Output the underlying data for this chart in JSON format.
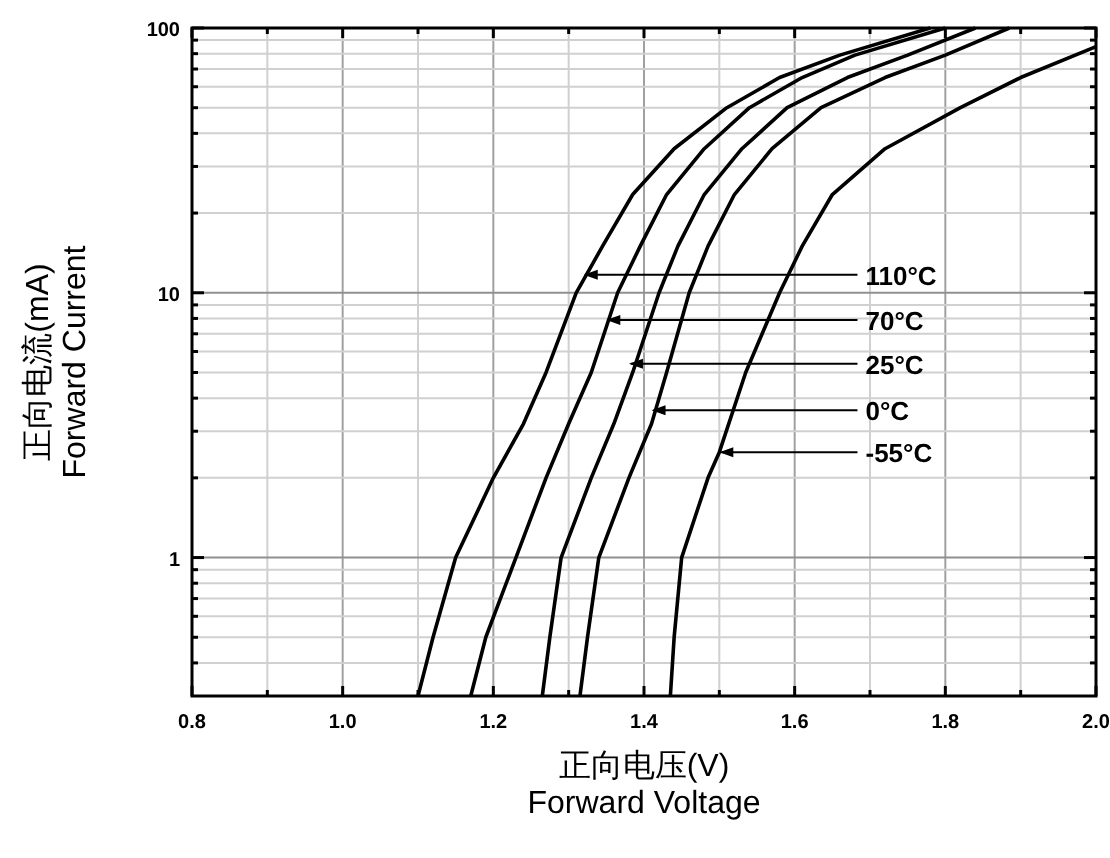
{
  "chart_data": {
    "type": "line",
    "xlabel": "正向电压(V)\nForward Voltage",
    "ylabel": "正向电流(mA)\nForward Current",
    "xlim": [
      0.8,
      2.0
    ],
    "xticks": [
      {
        "value": 0.8,
        "label": "0.8"
      },
      {
        "value": 0.9,
        "label": null
      },
      {
        "value": 1.0,
        "label": "1.0"
      },
      {
        "value": 1.1,
        "label": null
      },
      {
        "value": 1.2,
        "label": "1.2"
      },
      {
        "value": 1.3,
        "label": null
      },
      {
        "value": 1.4,
        "label": "1.4"
      },
      {
        "value": 1.5,
        "label": null
      },
      {
        "value": 1.6,
        "label": "1.6"
      },
      {
        "value": 1.7,
        "label": null
      },
      {
        "value": 1.8,
        "label": "1.8"
      },
      {
        "value": 1.9,
        "label": null
      },
      {
        "value": 2.0,
        "label": "2.0"
      }
    ],
    "ylim": [
      0.3,
      100
    ],
    "log": "y",
    "yticks": [
      {
        "value": 0.4,
        "label": null
      },
      {
        "value": 0.5,
        "label": null
      },
      {
        "value": 0.6,
        "label": null
      },
      {
        "value": 0.7,
        "label": null
      },
      {
        "value": 0.8,
        "label": null
      },
      {
        "value": 0.9,
        "label": null
      },
      1,
      {
        "value": 2,
        "label": null
      },
      {
        "value": 3,
        "label": null
      },
      {
        "value": 4,
        "label": null
      },
      {
        "value": 5,
        "label": null
      },
      {
        "value": 6,
        "label": null
      },
      {
        "value": 7,
        "label": null
      },
      {
        "value": 8,
        "label": null
      },
      {
        "value": 9,
        "label": null
      },
      10,
      {
        "value": 20,
        "label": null
      },
      {
        "value": 30,
        "label": null
      },
      {
        "value": 40,
        "label": null
      },
      {
        "value": 50,
        "label": null
      },
      {
        "value": 60,
        "label": null
      },
      {
        "value": 70,
        "label": null
      },
      {
        "value": 80,
        "label": null
      },
      {
        "value": 90,
        "label": null
      },
      100
    ],
    "grid": true,
    "marker": "none",
    "line_style": "solid",
    "series": [
      {
        "color": "#000000",
        "x": [
          1.1,
          1.12,
          1.15,
          1.2,
          1.24,
          1.27,
          1.31,
          1.345,
          1.385,
          1.44,
          1.51,
          1.58,
          1.66,
          1.78
        ],
        "values": [
          0.3,
          0.5,
          1,
          2,
          3.2,
          5,
          10,
          15,
          23.5,
          35,
          50,
          65,
          79,
          100
        ]
      },
      {
        "color": "#000000",
        "x": [
          1.17,
          1.19,
          1.23,
          1.27,
          1.3,
          1.33,
          1.365,
          1.395,
          1.43,
          1.48,
          1.54,
          1.61,
          1.68,
          1.8
        ],
        "values": [
          0.3,
          0.5,
          1,
          2,
          3.2,
          5,
          10,
          15,
          23.5,
          35,
          50,
          65,
          79,
          100
        ]
      },
      {
        "color": "#000000",
        "x": [
          1.265,
          1.275,
          1.29,
          1.33,
          1.36,
          1.385,
          1.42,
          1.445,
          1.48,
          1.53,
          1.59,
          1.67,
          1.75,
          1.84
        ],
        "values": [
          0.3,
          0.5,
          1,
          2,
          3.2,
          5,
          10,
          15,
          23.5,
          35,
          50,
          65,
          79,
          100
        ]
      },
      {
        "color": "#000000",
        "x": [
          1.315,
          1.325,
          1.34,
          1.38,
          1.41,
          1.43,
          1.46,
          1.485,
          1.52,
          1.57,
          1.635,
          1.72,
          1.8,
          1.885
        ],
        "values": [
          0.3,
          0.5,
          1,
          2,
          3.2,
          5,
          10,
          15,
          23.5,
          35,
          50,
          65,
          79,
          100
        ]
      },
      {
        "color": "#000000",
        "x": [
          1.435,
          1.44,
          1.45,
          1.485,
          1.5,
          1.535,
          1.58,
          1.61,
          1.65,
          1.72,
          1.82,
          1.9,
          2.0
        ],
        "values": [
          0.3,
          0.5,
          1,
          2,
          2.5,
          5,
          10,
          15,
          23.5,
          35,
          50,
          65,
          85
        ]
      }
    ],
    "annotations": [
      {
        "text": "110°C",
        "x": 1.32,
        "y": 11.7
      },
      {
        "text": "70°C",
        "x": 1.35,
        "y": 7.9
      },
      {
        "text": "25°C",
        "x": 1.38,
        "y": 5.4
      },
      {
        "text": "0°C",
        "x": 1.41,
        "y": 3.6
      },
      {
        "text": "-55°C",
        "x": 1.5,
        "y": 2.5
      }
    ]
  }
}
